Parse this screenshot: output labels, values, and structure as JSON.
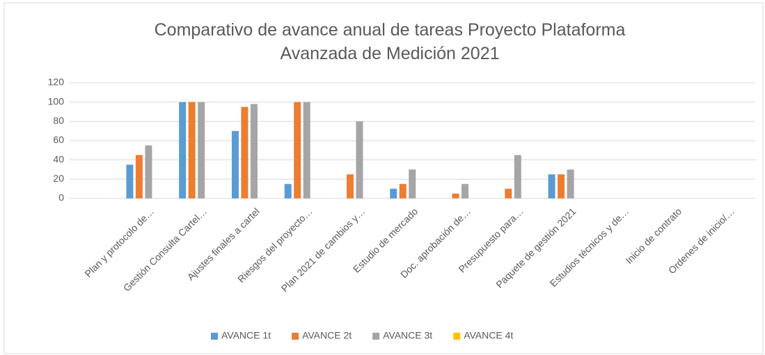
{
  "chart_data": {
    "type": "bar",
    "title": "Comparativo de avance anual de tareas Proyecto Plataforma Avanzada de Medición 2021",
    "categories": [
      null,
      "Plan y protocolo de…",
      "Gestión Consulta Cartel…",
      "Ajustes finales a cartel",
      "Riesgos del proyecto…",
      "Plan 2021 de cambios y…",
      "Estudio de mercado",
      "Doc. aprobación de…",
      "Presupuesto para…",
      "Paquete de gestión 2021",
      "Estudios técnicos y de…",
      "Inicio de contrato",
      "Ordenes de inicio/…"
    ],
    "series": [
      {
        "name": "AVANCE 1t",
        "color": "#5b9bd5",
        "values": [
          null,
          35,
          100,
          70,
          15,
          0,
          10,
          0,
          0,
          25,
          0,
          0,
          0
        ]
      },
      {
        "name": "AVANCE 2t",
        "color": "#ed7d31",
        "values": [
          null,
          45,
          100,
          95,
          100,
          25,
          15,
          5,
          10,
          25,
          0,
          0,
          0
        ]
      },
      {
        "name": "AVANCE 3t",
        "color": "#a5a5a5",
        "values": [
          null,
          55,
          100,
          98,
          100,
          80,
          30,
          15,
          45,
          30,
          0,
          0,
          0
        ]
      },
      {
        "name": "AVANCE 4t",
        "color": "#ffc000",
        "values": [
          null,
          0,
          0,
          0,
          0,
          0,
          0,
          0,
          0,
          0,
          0,
          0,
          0
        ]
      }
    ],
    "ylim": [
      0,
      120
    ],
    "yticks": [
      0,
      20,
      40,
      60,
      80,
      100,
      120
    ],
    "grid": true,
    "legend": "bottom"
  }
}
